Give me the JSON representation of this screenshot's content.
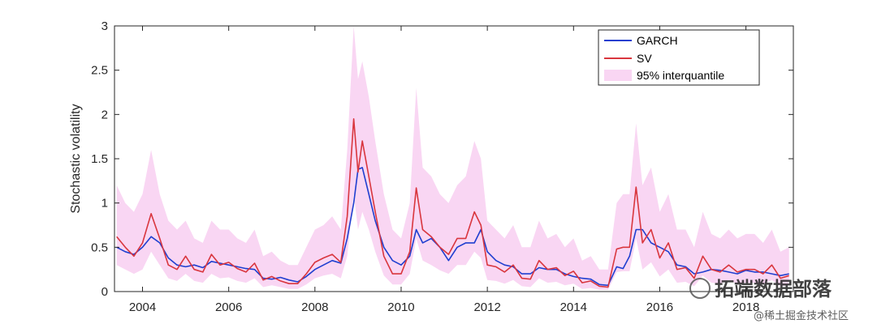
{
  "chart_data": {
    "type": "line",
    "title": "",
    "xlabel": "",
    "ylabel": "Stochastic volatility",
    "xlim": [
      2003.35,
      2019.1
    ],
    "ylim": [
      0,
      3
    ],
    "xticks": [
      2004,
      2006,
      2008,
      2010,
      2012,
      2014,
      2016,
      2018
    ],
    "yticks": [
      0,
      0.5,
      1,
      1.5,
      2,
      2.5,
      3
    ],
    "ytick_labels": [
      "0",
      "0.5",
      "1",
      "1.5",
      "2",
      "2.5",
      "3"
    ],
    "grid": false,
    "legend_position": "top-right",
    "x": [
      2003.4,
      2003.6,
      2003.8,
      2004.0,
      2004.2,
      2004.4,
      2004.6,
      2004.8,
      2005.0,
      2005.2,
      2005.4,
      2005.6,
      2005.8,
      2006.0,
      2006.2,
      2006.4,
      2006.6,
      2006.8,
      2007.0,
      2007.2,
      2007.4,
      2007.6,
      2007.8,
      2008.0,
      2008.2,
      2008.4,
      2008.6,
      2008.75,
      2008.9,
      2009.0,
      2009.1,
      2009.25,
      2009.4,
      2009.6,
      2009.8,
      2010.0,
      2010.2,
      2010.35,
      2010.5,
      2010.7,
      2010.9,
      2011.1,
      2011.3,
      2011.5,
      2011.7,
      2011.85,
      2012.0,
      2012.2,
      2012.4,
      2012.6,
      2012.8,
      2013.0,
      2013.2,
      2013.4,
      2013.6,
      2013.8,
      2014.0,
      2014.2,
      2014.4,
      2014.6,
      2014.8,
      2015.0,
      2015.15,
      2015.3,
      2015.45,
      2015.6,
      2015.8,
      2016.0,
      2016.2,
      2016.4,
      2016.6,
      2016.8,
      2017.0,
      2017.2,
      2017.4,
      2017.6,
      2017.8,
      2018.0,
      2018.2,
      2018.4,
      2018.6,
      2018.8,
      2019.0
    ],
    "series": [
      {
        "name": "GARCH",
        "color": "#1f3fd0",
        "values": [
          0.5,
          0.45,
          0.42,
          0.5,
          0.62,
          0.55,
          0.38,
          0.3,
          0.28,
          0.3,
          0.27,
          0.34,
          0.32,
          0.3,
          0.28,
          0.26,
          0.25,
          0.15,
          0.14,
          0.16,
          0.13,
          0.11,
          0.17,
          0.25,
          0.3,
          0.35,
          0.32,
          0.6,
          1.0,
          1.38,
          1.4,
          1.1,
          0.8,
          0.5,
          0.35,
          0.3,
          0.4,
          0.7,
          0.55,
          0.6,
          0.5,
          0.35,
          0.5,
          0.55,
          0.55,
          0.7,
          0.45,
          0.35,
          0.3,
          0.28,
          0.2,
          0.2,
          0.27,
          0.25,
          0.25,
          0.2,
          0.17,
          0.15,
          0.14,
          0.08,
          0.07,
          0.28,
          0.26,
          0.4,
          0.7,
          0.7,
          0.55,
          0.5,
          0.45,
          0.3,
          0.28,
          0.2,
          0.22,
          0.25,
          0.24,
          0.22,
          0.2,
          0.24,
          0.22,
          0.22,
          0.2,
          0.18,
          0.2
        ]
      },
      {
        "name": "SV",
        "color": "#d9363e",
        "values": [
          0.62,
          0.5,
          0.4,
          0.55,
          0.88,
          0.6,
          0.3,
          0.25,
          0.4,
          0.25,
          0.22,
          0.42,
          0.3,
          0.33,
          0.26,
          0.22,
          0.32,
          0.13,
          0.17,
          0.12,
          0.09,
          0.09,
          0.2,
          0.33,
          0.38,
          0.42,
          0.33,
          0.85,
          1.95,
          1.35,
          1.7,
          1.3,
          0.9,
          0.4,
          0.2,
          0.2,
          0.45,
          1.17,
          0.7,
          0.62,
          0.5,
          0.42,
          0.6,
          0.6,
          0.9,
          0.75,
          0.3,
          0.28,
          0.22,
          0.3,
          0.15,
          0.14,
          0.35,
          0.25,
          0.27,
          0.18,
          0.23,
          0.1,
          0.12,
          0.06,
          0.05,
          0.48,
          0.5,
          0.5,
          1.18,
          0.55,
          0.7,
          0.38,
          0.55,
          0.25,
          0.27,
          0.15,
          0.4,
          0.25,
          0.22,
          0.3,
          0.22,
          0.25,
          0.25,
          0.2,
          0.3,
          0.15,
          0.18
        ]
      }
    ],
    "band": {
      "name": "95% interquantile",
      "color": "#f9d6f3",
      "upper": [
        1.2,
        1.0,
        0.9,
        1.1,
        1.6,
        1.1,
        0.8,
        0.7,
        0.8,
        0.6,
        0.55,
        0.8,
        0.7,
        0.7,
        0.6,
        0.55,
        0.7,
        0.4,
        0.45,
        0.35,
        0.3,
        0.3,
        0.5,
        0.7,
        0.75,
        0.85,
        0.7,
        1.6,
        3.0,
        2.4,
        2.6,
        2.2,
        1.7,
        1.1,
        0.7,
        0.6,
        1.0,
        2.3,
        1.4,
        1.3,
        1.1,
        1.0,
        1.2,
        1.3,
        1.7,
        1.5,
        0.8,
        0.7,
        0.6,
        0.75,
        0.5,
        0.5,
        0.8,
        0.6,
        0.65,
        0.5,
        0.6,
        0.35,
        0.4,
        0.25,
        0.25,
        1.0,
        1.1,
        1.1,
        1.9,
        1.2,
        1.4,
        0.9,
        1.1,
        0.7,
        0.7,
        0.5,
        0.9,
        0.65,
        0.6,
        0.7,
        0.6,
        0.65,
        0.65,
        0.55,
        0.7,
        0.45,
        0.5
      ],
      "lower": [
        0.3,
        0.25,
        0.2,
        0.25,
        0.45,
        0.3,
        0.15,
        0.12,
        0.2,
        0.12,
        0.1,
        0.2,
        0.15,
        0.16,
        0.12,
        0.1,
        0.15,
        0.05,
        0.07,
        0.05,
        0.03,
        0.03,
        0.08,
        0.15,
        0.18,
        0.2,
        0.15,
        0.4,
        1.1,
        0.7,
        0.9,
        0.7,
        0.45,
        0.18,
        0.08,
        0.08,
        0.2,
        0.6,
        0.35,
        0.3,
        0.24,
        0.2,
        0.3,
        0.3,
        0.45,
        0.38,
        0.13,
        0.12,
        0.09,
        0.13,
        0.06,
        0.05,
        0.15,
        0.1,
        0.11,
        0.07,
        0.09,
        0.03,
        0.04,
        0.02,
        0.02,
        0.22,
        0.23,
        0.23,
        0.6,
        0.25,
        0.33,
        0.17,
        0.25,
        0.1,
        0.11,
        0.06,
        0.18,
        0.1,
        0.09,
        0.13,
        0.09,
        0.1,
        0.1,
        0.08,
        0.13,
        0.06,
        0.07
      ]
    }
  },
  "watermark": {
    "main": "拓端数据部落",
    "sub": "@稀土掘金技术社区"
  }
}
